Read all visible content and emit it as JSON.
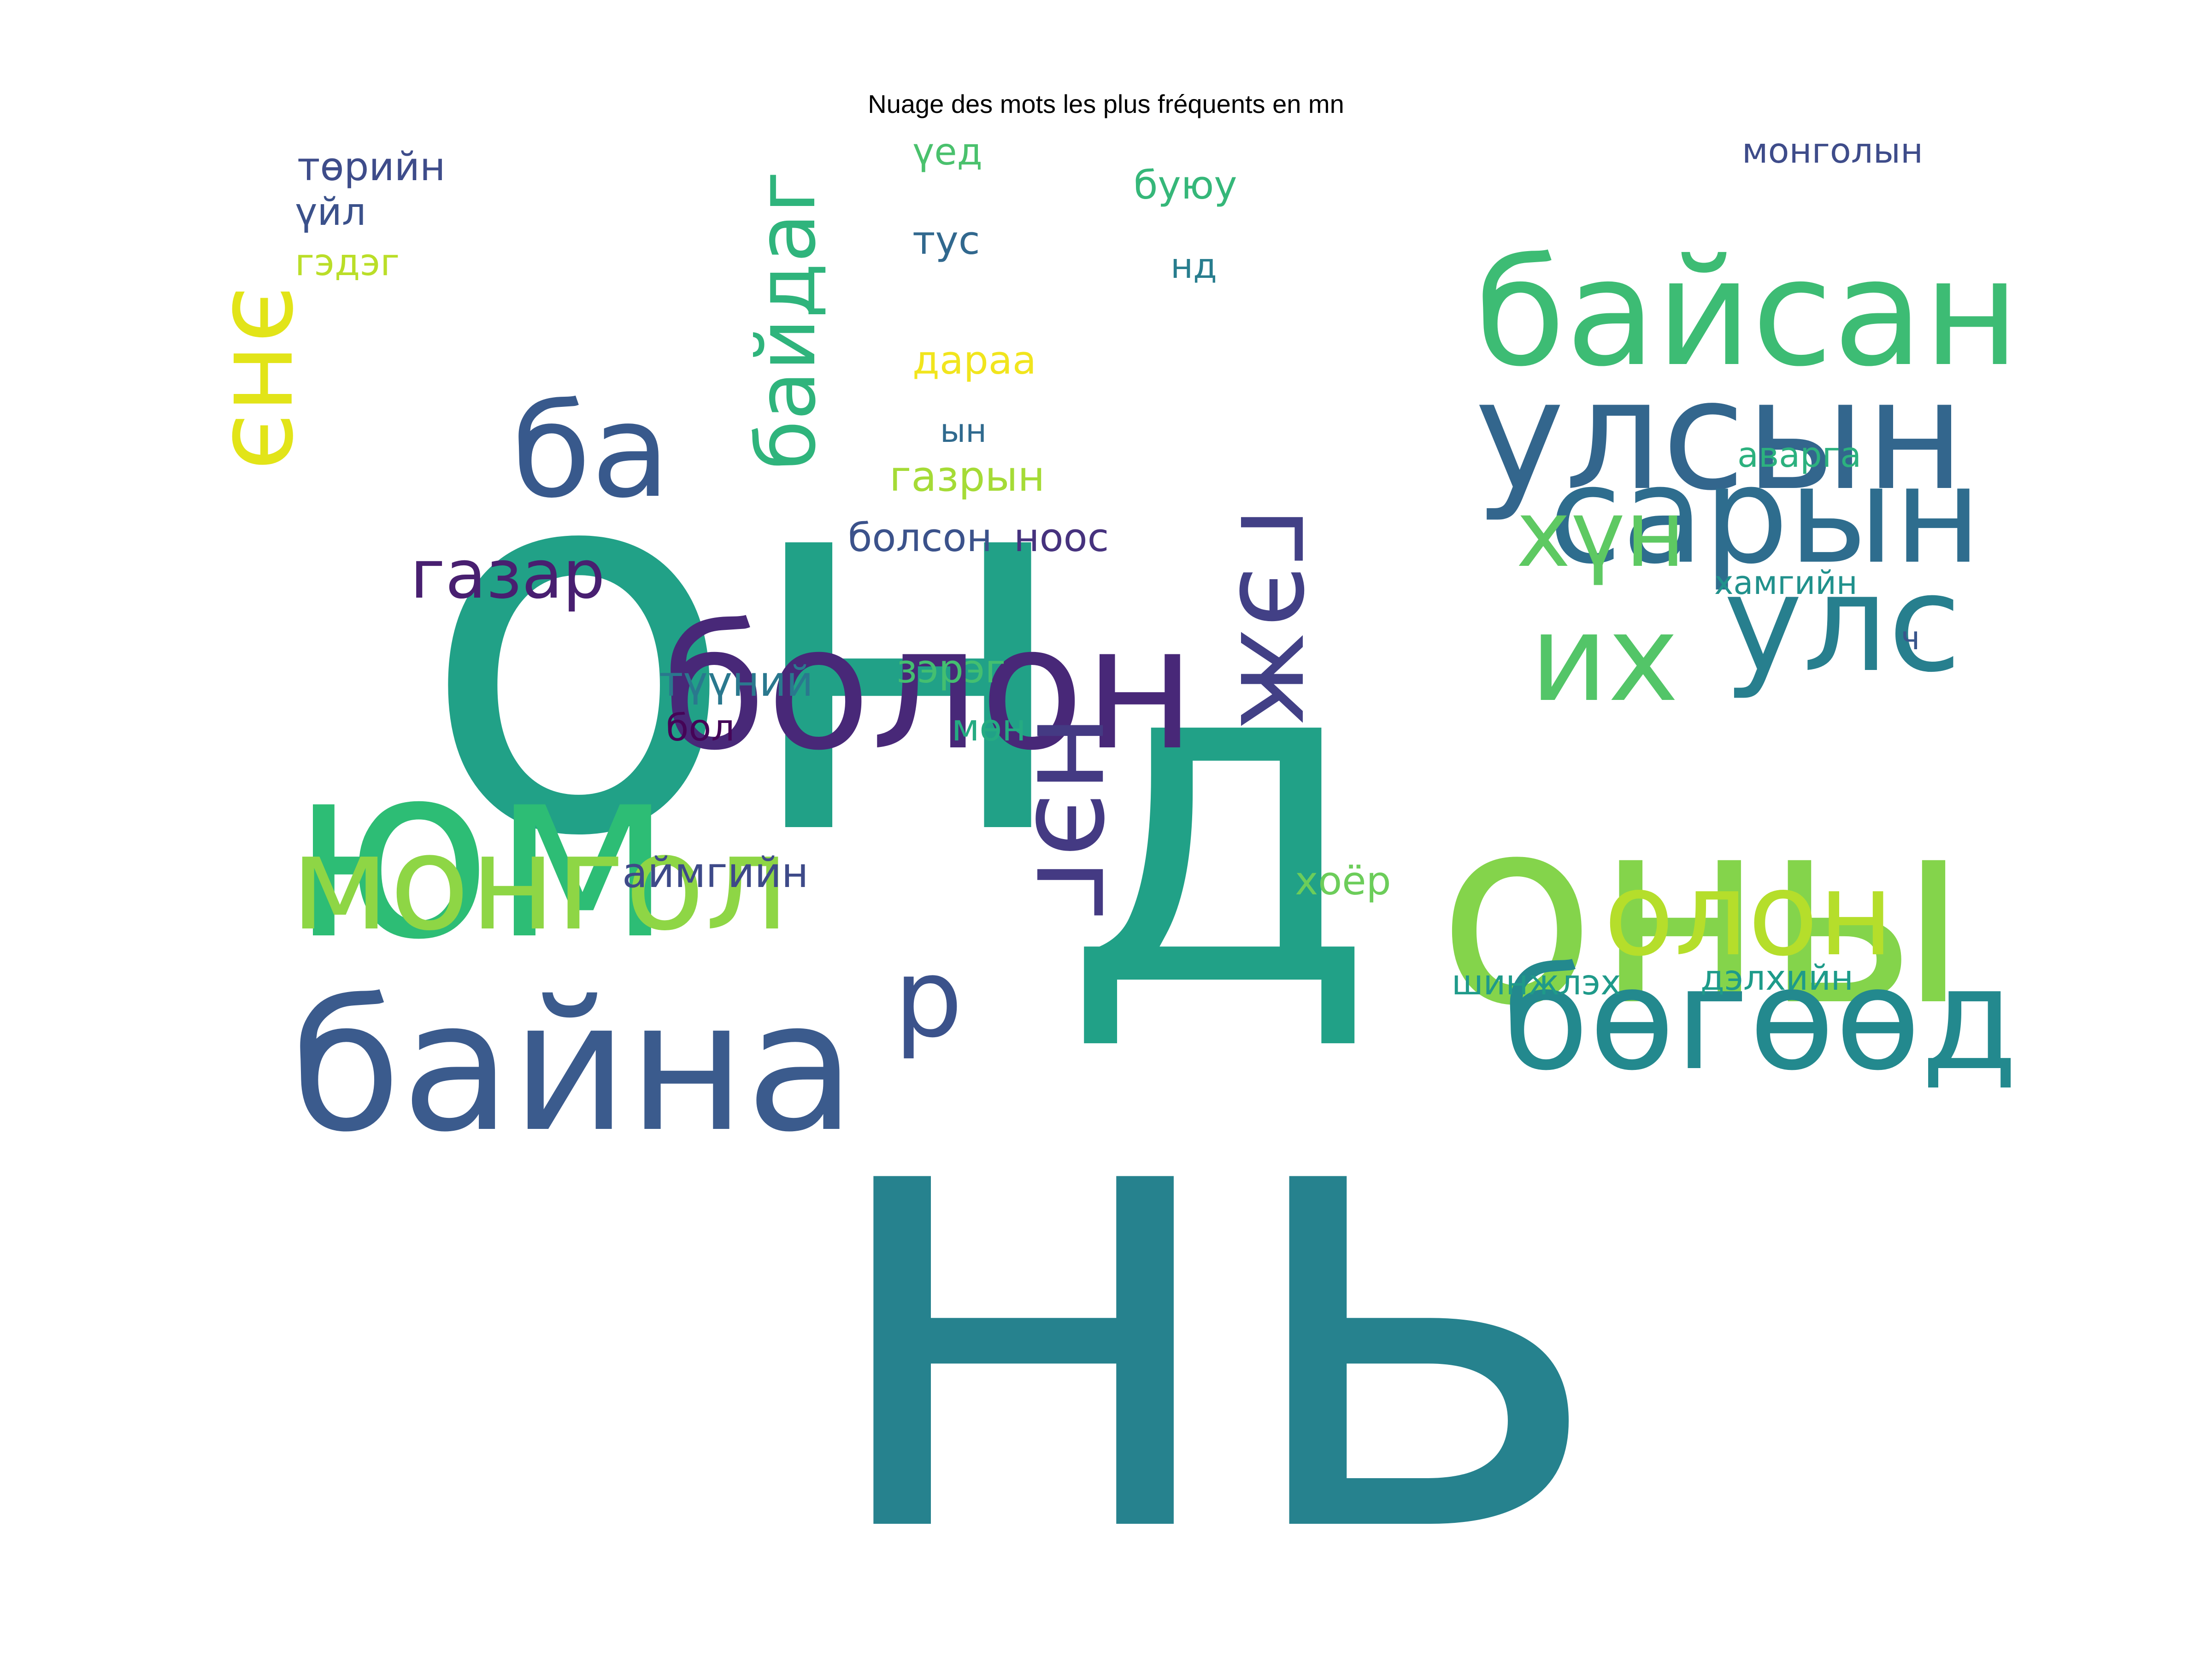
{
  "title": "Nuage des mots les plus fréquents en mn",
  "words": [
    {
      "text": "он",
      "color": "#21a187"
    },
    {
      "text": "нь",
      "color": "#26828e"
    },
    {
      "text": "д",
      "color": "#21a187"
    },
    {
      "text": "оны",
      "color": "#84d44b"
    },
    {
      "text": "юм",
      "color": "#2dbd75"
    },
    {
      "text": "болон",
      "color": "#482878"
    },
    {
      "text": "байна",
      "color": "#3b5b8d"
    },
    {
      "text": "улсын",
      "color": "#33668d"
    },
    {
      "text": "байсан",
      "color": "#3dbc74"
    },
    {
      "text": "сарын",
      "color": "#2e6d8e"
    },
    {
      "text": "бөгөөд",
      "color": "#23898e"
    },
    {
      "text": "монгол",
      "color": "#8ed645"
    },
    {
      "text": "улс",
      "color": "#277f8e"
    },
    {
      "text": "олон",
      "color": "#b5de2b"
    },
    {
      "text": "ба",
      "color": "#38598c"
    },
    {
      "text": "их",
      "color": "#53c568"
    },
    {
      "text": "хүн",
      "color": "#5ec962"
    },
    {
      "text": "р",
      "color": "#3b528b"
    },
    {
      "text": "нэг",
      "color": "#443a83"
    },
    {
      "text": "гэж",
      "color": "#424086"
    },
    {
      "text": "энэ",
      "color": "#e2e418"
    },
    {
      "text": "газар",
      "color": "#481f70"
    },
    {
      "text": "байдаг",
      "color": "#2fb47c"
    },
    {
      "text": "түүний",
      "color": "#2a788e"
    },
    {
      "text": "аймгийн",
      "color": "#3e4a89"
    },
    {
      "text": "зэрэг",
      "color": "#44bf70"
    },
    {
      "text": "хоёр",
      "color": "#6ccd5a"
    },
    {
      "text": "болсон",
      "color": "#3b528b"
    },
    {
      "text": "ноос",
      "color": "#46327e"
    },
    {
      "text": "газрын",
      "color": "#a5db36"
    },
    {
      "text": "дараа",
      "color": "#f1e51d"
    },
    {
      "text": "төрийн",
      "color": "#3e4c8a"
    },
    {
      "text": "үйл",
      "color": "#3b518b"
    },
    {
      "text": "гэдэг",
      "color": "#bade28"
    },
    {
      "text": "үед",
      "color": "#4ac16d"
    },
    {
      "text": "тус",
      "color": "#31688e"
    },
    {
      "text": "буюу",
      "color": "#35b779"
    },
    {
      "text": "нд",
      "color": "#287d8e"
    },
    {
      "text": "монголын",
      "color": "#3e4c8a"
    },
    {
      "text": "аварга",
      "color": "#2cb17e"
    },
    {
      "text": "хамгийн",
      "color": "#21918c"
    },
    {
      "text": "ч",
      "color": "#39568c"
    },
    {
      "text": "бол",
      "color": "#450457"
    },
    {
      "text": "мөн",
      "color": "#25ab82"
    },
    {
      "text": "шинжлэх",
      "color": "#1f9a8a"
    },
    {
      "text": "дэлхийн",
      "color": "#1e9b8a"
    },
    {
      "text": "ын",
      "color": "#306a8e"
    }
  ]
}
